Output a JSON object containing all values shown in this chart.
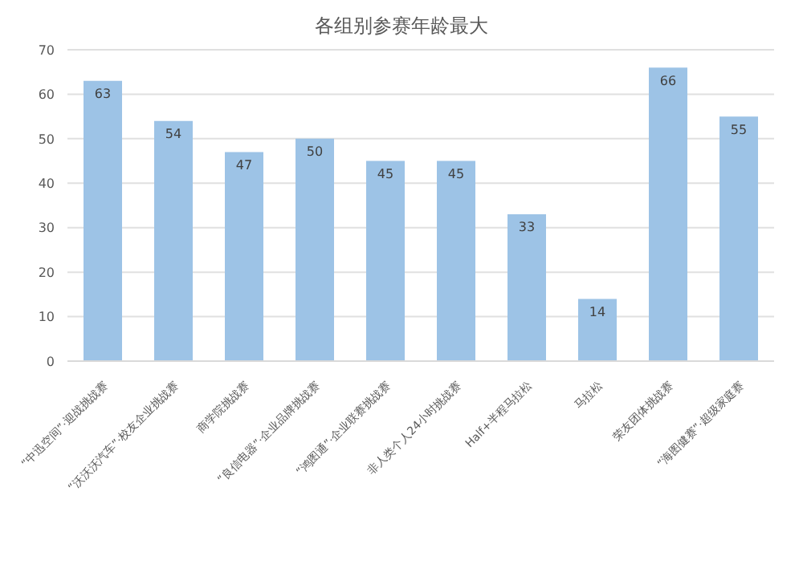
{
  "chart_data": {
    "type": "bar",
    "title": "各组别参赛年龄最大",
    "categories": [
      "“中迅空间”·迎战挑战赛",
      "“沃沃沃汽车”·校友企业挑战赛",
      "商学院挑战赛",
      "“良信电器”·企业品牌挑战赛",
      "“鸿图通”·企业联赛挑战赛",
      "非人类个人24小时挑战赛",
      "Half+半程马拉松",
      "马拉松",
      "荣友团体挑战赛",
      "“海图健赛”·超级家庭赛"
    ],
    "values": [
      63,
      54,
      47,
      50,
      45,
      45,
      33,
      14,
      66,
      55
    ],
    "color": "#9dc3e6",
    "ylim": [
      0,
      70
    ],
    "yticks": [
      0,
      10,
      20,
      30,
      40,
      50,
      60,
      70
    ],
    "grid": "y",
    "data_labels": true
  }
}
